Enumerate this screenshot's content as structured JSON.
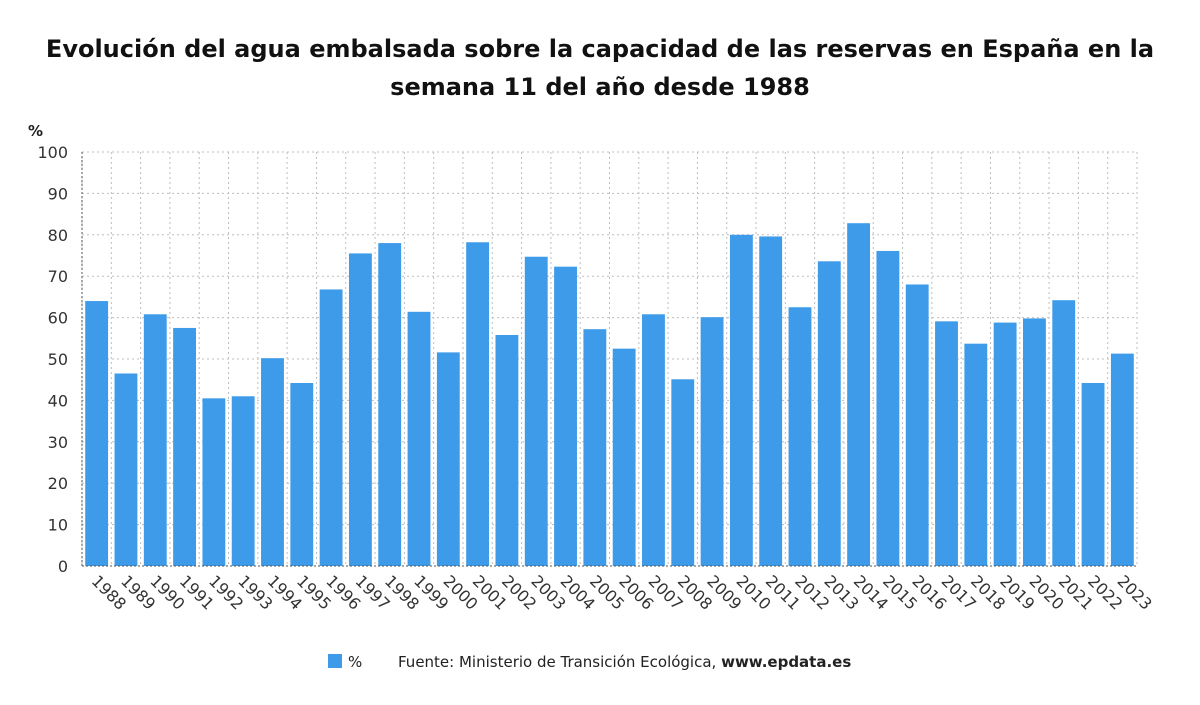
{
  "chart_data": {
    "type": "bar",
    "title": "Evolución del agua embalsada sobre la capacidad de las reservas en España en la semana 11 del año desde 1988",
    "ylabel": "%",
    "xlabel": "",
    "ylim": [
      0,
      100
    ],
    "yticks": [
      0,
      10,
      20,
      30,
      40,
      50,
      60,
      70,
      80,
      90,
      100
    ],
    "grid": true,
    "categories": [
      "1988",
      "1989",
      "1990",
      "1991",
      "1992",
      "1993",
      "1994",
      "1995",
      "1996",
      "1997",
      "1998",
      "1999",
      "2000",
      "2001",
      "2002",
      "2003",
      "2004",
      "2005",
      "2006",
      "2007",
      "2008",
      "2009",
      "2010",
      "2011",
      "2012",
      "2013",
      "2014",
      "2015",
      "2016",
      "2017",
      "2018",
      "2019",
      "2020",
      "2021",
      "2022",
      "2023"
    ],
    "series": [
      {
        "name": "%",
        "color": "#3d9be9",
        "values": [
          64.0,
          46.5,
          60.8,
          57.5,
          40.5,
          41.0,
          50.2,
          44.2,
          66.8,
          75.5,
          78.0,
          61.4,
          51.6,
          78.2,
          55.8,
          74.7,
          72.3,
          57.2,
          52.5,
          60.8,
          45.1,
          60.1,
          80.0,
          79.6,
          62.5,
          73.6,
          82.8,
          76.1,
          68.0,
          59.1,
          53.7,
          58.8,
          59.8,
          64.2,
          44.2,
          51.3
        ]
      }
    ],
    "legend": {
      "position": "bottom"
    },
    "source": "Fuente: Ministerio de Transición Ecológica,",
    "source_site": "www.epdata.es"
  }
}
